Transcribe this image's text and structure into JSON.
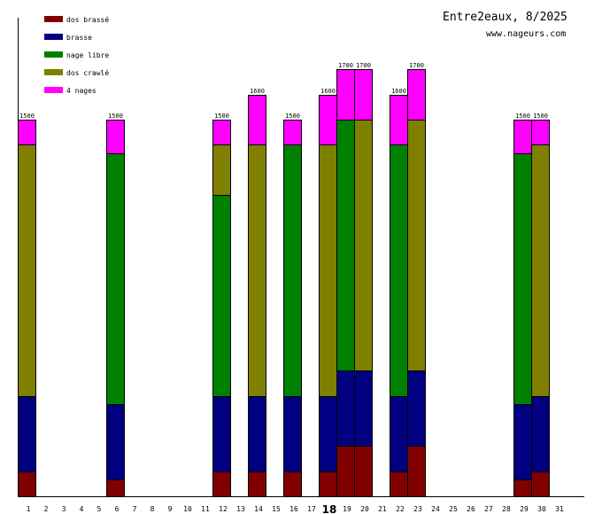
{
  "chart_data": {
    "type": "bar",
    "stacked": true,
    "title": "Entre2eaux, 8/2025",
    "subtitle": "www.nageurs.com",
    "xlabel": "",
    "ylabel": "",
    "ylim": [
      0,
      1900
    ],
    "grid": false,
    "legend_position": "top-left",
    "highlighted_day": 18,
    "categories": [
      1,
      2,
      3,
      4,
      5,
      6,
      7,
      8,
      9,
      10,
      11,
      12,
      13,
      14,
      15,
      16,
      17,
      18,
      19,
      20,
      21,
      22,
      23,
      24,
      25,
      26,
      27,
      28,
      29,
      30,
      31
    ],
    "series": [
      {
        "name": "dos brassé",
        "color": "#800000",
        "values": [
          100,
          0,
          0,
          0,
          0,
          67,
          0,
          0,
          0,
          0,
          0,
          100,
          0,
          100,
          0,
          100,
          0,
          100,
          200,
          200,
          0,
          100,
          200,
          0,
          0,
          0,
          0,
          0,
          67,
          100,
          0
        ]
      },
      {
        "name": "brasse",
        "color": "#000080",
        "values": [
          300,
          0,
          0,
          0,
          0,
          300,
          0,
          0,
          0,
          0,
          0,
          300,
          0,
          300,
          0,
          300,
          0,
          300,
          300,
          300,
          0,
          300,
          300,
          0,
          0,
          0,
          0,
          0,
          300,
          300,
          0
        ]
      },
      {
        "name": "nage libre",
        "color": "#008000",
        "values": [
          0,
          0,
          0,
          0,
          0,
          1000,
          0,
          0,
          0,
          0,
          0,
          800,
          0,
          0,
          0,
          1000,
          0,
          0,
          1000,
          0,
          0,
          1000,
          0,
          0,
          0,
          0,
          0,
          0,
          1000,
          0,
          0
        ]
      },
      {
        "name": "dos crawlé",
        "color": "#808000",
        "values": [
          1000,
          0,
          0,
          0,
          0,
          0,
          0,
          0,
          0,
          0,
          0,
          200,
          0,
          1000,
          0,
          0,
          0,
          1000,
          0,
          1000,
          0,
          0,
          1000,
          0,
          0,
          0,
          0,
          0,
          0,
          1000,
          0
        ]
      },
      {
        "name": "4 nages",
        "color": "#ff00ff",
        "values": [
          100,
          0,
          0,
          0,
          0,
          133,
          0,
          0,
          0,
          0,
          0,
          100,
          0,
          200,
          0,
          100,
          0,
          200,
          200,
          200,
          0,
          200,
          200,
          0,
          0,
          0,
          0,
          0,
          133,
          100,
          0
        ]
      }
    ],
    "totals": [
      1500,
      0,
      0,
      0,
      0,
      1500,
      0,
      0,
      0,
      0,
      0,
      1500,
      0,
      1600,
      0,
      1500,
      0,
      1600,
      1700,
      1700,
      0,
      1600,
      1700,
      0,
      0,
      0,
      0,
      0,
      1500,
      1500,
      0
    ]
  }
}
